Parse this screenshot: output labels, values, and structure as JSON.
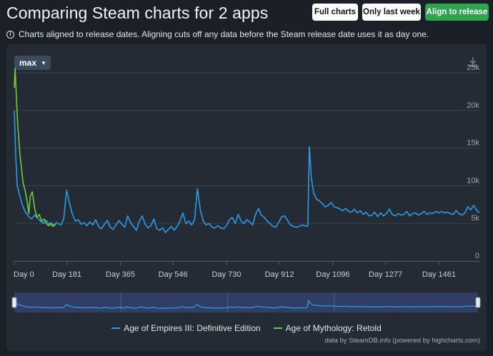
{
  "header": {
    "title": "Comparing Steam charts for 2 apps",
    "buttons": {
      "full_charts": "Full charts",
      "last_week": "Only last week",
      "align": "Align to release"
    },
    "info_text": "Charts aligned to release dates. Aligning cuts off any data before the Steam release date uses it as day one."
  },
  "chart_controls": {
    "range_label": "max",
    "download_icon": "download-icon"
  },
  "colors": {
    "accent_green": "#2ea44f",
    "series_aoe3": "#2b9be8",
    "series_aom": "#6dcc3a"
  },
  "chart_data": {
    "type": "line",
    "title": "",
    "xlabel": "",
    "ylabel": "",
    "x_ticks": [
      "Day 0",
      "Day 181",
      "Day 365",
      "Day 546",
      "Day 730",
      "Day 912",
      "Day 1096",
      "Day 1277",
      "Day 1461"
    ],
    "y_ticks": [
      "0",
      "5k",
      "10k",
      "15k",
      "20k",
      "25k"
    ],
    "xlim": [
      0,
      1600
    ],
    "ylim": [
      0,
      25000
    ],
    "grid": true,
    "legend_position": "bottom",
    "series": [
      {
        "name": "Age of Empires III: Definitive Edition",
        "color": "#2b9be8",
        "points": [
          [
            0,
            20000
          ],
          [
            5,
            14000
          ],
          [
            10,
            10000
          ],
          [
            20,
            8500
          ],
          [
            30,
            7200
          ],
          [
            40,
            6400
          ],
          [
            50,
            5900
          ],
          [
            60,
            5600
          ],
          [
            70,
            6100
          ],
          [
            80,
            5700
          ],
          [
            90,
            5300
          ],
          [
            100,
            5000
          ],
          [
            110,
            5400
          ],
          [
            120,
            4900
          ],
          [
            130,
            4700
          ],
          [
            145,
            5100
          ],
          [
            160,
            4800
          ],
          [
            170,
            5600
          ],
          [
            180,
            9400
          ],
          [
            190,
            7700
          ],
          [
            200,
            6200
          ],
          [
            210,
            5300
          ],
          [
            220,
            5500
          ],
          [
            230,
            4900
          ],
          [
            240,
            5100
          ],
          [
            250,
            4700
          ],
          [
            260,
            5200
          ],
          [
            270,
            4800
          ],
          [
            280,
            5500
          ],
          [
            290,
            4600
          ],
          [
            300,
            4300
          ],
          [
            310,
            4900
          ],
          [
            320,
            5400
          ],
          [
            330,
            4500
          ],
          [
            340,
            4200
          ],
          [
            350,
            4800
          ],
          [
            360,
            5400
          ],
          [
            370,
            4900
          ],
          [
            380,
            4500
          ],
          [
            390,
            6000
          ],
          [
            400,
            5100
          ],
          [
            410,
            4600
          ],
          [
            420,
            4100
          ],
          [
            430,
            5300
          ],
          [
            440,
            6000
          ],
          [
            450,
            4900
          ],
          [
            460,
            4400
          ],
          [
            470,
            4700
          ],
          [
            480,
            5600
          ],
          [
            490,
            4300
          ],
          [
            500,
            4100
          ],
          [
            510,
            4400
          ],
          [
            520,
            3800
          ],
          [
            530,
            4200
          ],
          [
            540,
            4600
          ],
          [
            550,
            4100
          ],
          [
            560,
            4600
          ],
          [
            570,
            5300
          ],
          [
            580,
            6400
          ],
          [
            590,
            5000
          ],
          [
            600,
            5300
          ],
          [
            610,
            4800
          ],
          [
            620,
            5500
          ],
          [
            630,
            9600
          ],
          [
            640,
            6800
          ],
          [
            650,
            5300
          ],
          [
            660,
            4800
          ],
          [
            670,
            5000
          ],
          [
            680,
            4500
          ],
          [
            690,
            4400
          ],
          [
            700,
            4700
          ],
          [
            710,
            4400
          ],
          [
            720,
            4300
          ],
          [
            730,
            4700
          ],
          [
            740,
            5500
          ],
          [
            750,
            5800
          ],
          [
            760,
            5000
          ],
          [
            770,
            6200
          ],
          [
            780,
            5300
          ],
          [
            790,
            5000
          ],
          [
            800,
            5500
          ],
          [
            810,
            5200
          ],
          [
            820,
            4800
          ],
          [
            830,
            6200
          ],
          [
            840,
            7000
          ],
          [
            850,
            6100
          ],
          [
            860,
            5800
          ],
          [
            870,
            5300
          ],
          [
            880,
            5000
          ],
          [
            890,
            4600
          ],
          [
            900,
            4500
          ],
          [
            910,
            5200
          ],
          [
            920,
            5900
          ],
          [
            930,
            6000
          ],
          [
            940,
            5400
          ],
          [
            950,
            4800
          ],
          [
            960,
            4600
          ],
          [
            970,
            4500
          ],
          [
            980,
            4600
          ],
          [
            990,
            4800
          ],
          [
            1000,
            4700
          ],
          [
            1008,
            4600
          ],
          [
            1010,
            5000
          ],
          [
            1015,
            15200
          ],
          [
            1022,
            11000
          ],
          [
            1030,
            9000
          ],
          [
            1040,
            8200
          ],
          [
            1050,
            8000
          ],
          [
            1060,
            7600
          ],
          [
            1070,
            7200
          ],
          [
            1080,
            7400
          ],
          [
            1090,
            7800
          ],
          [
            1100,
            7200
          ],
          [
            1110,
            7100
          ],
          [
            1120,
            6900
          ],
          [
            1130,
            6700
          ],
          [
            1140,
            7000
          ],
          [
            1150,
            6600
          ],
          [
            1160,
            6500
          ],
          [
            1170,
            6900
          ],
          [
            1180,
            6400
          ],
          [
            1190,
            6700
          ],
          [
            1200,
            6200
          ],
          [
            1210,
            6500
          ],
          [
            1220,
            6000
          ],
          [
            1230,
            6100
          ],
          [
            1240,
            6500
          ],
          [
            1250,
            5900
          ],
          [
            1260,
            6400
          ],
          [
            1270,
            6000
          ],
          [
            1280,
            6300
          ],
          [
            1290,
            6900
          ],
          [
            1300,
            6200
          ],
          [
            1310,
            6000
          ],
          [
            1320,
            6300
          ],
          [
            1330,
            6100
          ],
          [
            1340,
            6200
          ],
          [
            1350,
            6600
          ],
          [
            1360,
            6000
          ],
          [
            1370,
            6300
          ],
          [
            1380,
            6400
          ],
          [
            1390,
            6100
          ],
          [
            1400,
            6300
          ],
          [
            1410,
            6600
          ],
          [
            1420,
            6200
          ],
          [
            1430,
            6400
          ],
          [
            1440,
            6300
          ],
          [
            1450,
            6600
          ],
          [
            1460,
            6400
          ],
          [
            1470,
            6600
          ],
          [
            1480,
            6400
          ],
          [
            1490,
            6500
          ],
          [
            1500,
            6300
          ],
          [
            1510,
            6200
          ],
          [
            1520,
            6700
          ],
          [
            1530,
            6300
          ],
          [
            1540,
            6100
          ],
          [
            1550,
            6400
          ],
          [
            1560,
            7200
          ],
          [
            1570,
            6800
          ],
          [
            1580,
            7400
          ],
          [
            1590,
            6800
          ],
          [
            1600,
            6400
          ]
        ]
      },
      {
        "name": "Age of Mythology: Retold",
        "color": "#6dcc3a",
        "points": [
          [
            0,
            23000
          ],
          [
            3,
            25600
          ],
          [
            7,
            22000
          ],
          [
            12,
            18000
          ],
          [
            20,
            14000
          ],
          [
            30,
            10500
          ],
          [
            38,
            9200
          ],
          [
            45,
            7800
          ],
          [
            50,
            6300
          ],
          [
            55,
            8600
          ],
          [
            62,
            9200
          ],
          [
            70,
            7000
          ],
          [
            78,
            5800
          ],
          [
            86,
            6200
          ],
          [
            94,
            5300
          ],
          [
            102,
            5600
          ],
          [
            110,
            5000
          ],
          [
            118,
            4700
          ],
          [
            126,
            5100
          ],
          [
            134,
            4600
          ],
          [
            142,
            4900
          ]
        ]
      }
    ],
    "navigator_series": "Age of Empires III: Definitive Edition",
    "credits": "data by SteamDB.info (powered by highcharts.com)"
  }
}
